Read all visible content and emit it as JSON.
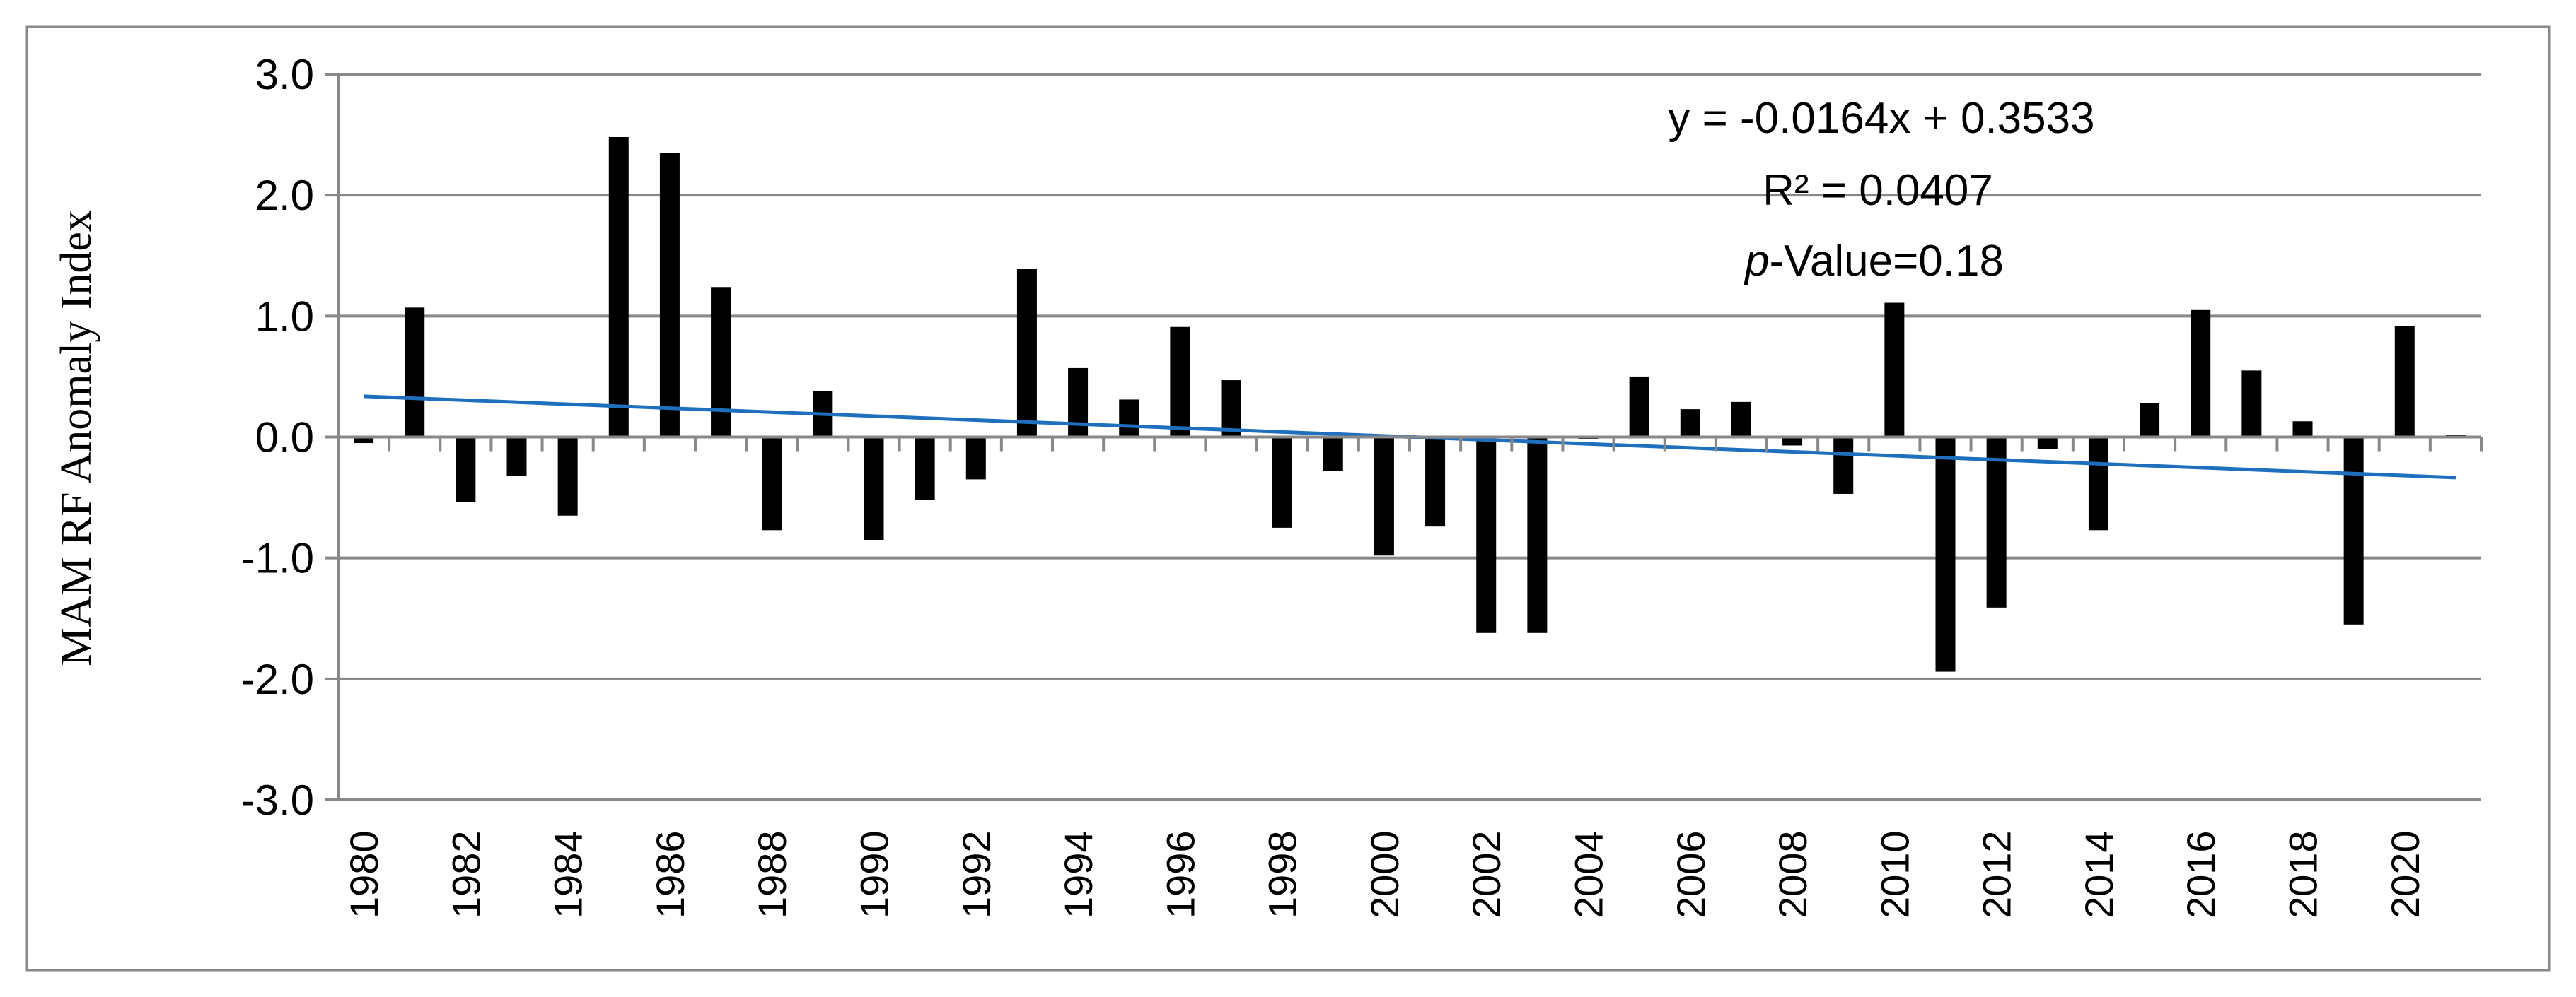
{
  "chart_data": {
    "type": "bar",
    "title": "",
    "xlabel": "",
    "ylabel": "MAM RF Anomaly Index",
    "ylim": [
      -3.0,
      3.0
    ],
    "yticks": [
      "3.0",
      "2.0",
      "1.0",
      "0.0",
      "-1.0",
      "-2.0",
      "-3.0"
    ],
    "ytick_values": [
      3,
      2,
      1,
      0,
      -1,
      -2,
      -3
    ],
    "grid": true,
    "categories": [
      "1980",
      "1981",
      "1982",
      "1983",
      "1984",
      "1985",
      "1986",
      "1987",
      "1988",
      "1989",
      "1990",
      "1991",
      "1992",
      "1993",
      "1994",
      "1995",
      "1996",
      "1997",
      "1998",
      "1999",
      "2000",
      "2001",
      "2002",
      "2003",
      "2004",
      "2005",
      "2006",
      "2007",
      "2008",
      "2009",
      "2010",
      "2011",
      "2012",
      "2013",
      "2014",
      "2015",
      "2016",
      "2017",
      "2018",
      "2019",
      "2020",
      "2021"
    ],
    "x_tick_labels": [
      "1980",
      "1982",
      "1984",
      "1986",
      "1988",
      "1990",
      "1992",
      "1994",
      "1996",
      "1998",
      "2000",
      "2002",
      "2004",
      "2006",
      "2008",
      "2010",
      "2012",
      "2014",
      "2016",
      "2018",
      "2020"
    ],
    "series": [
      {
        "name": "MAM RF Anomaly Index",
        "color": "#000000",
        "values": [
          -0.05,
          1.07,
          -0.54,
          -0.32,
          -0.65,
          2.48,
          2.35,
          1.24,
          -0.77,
          0.38,
          -0.85,
          -0.52,
          -0.35,
          1.39,
          0.57,
          0.31,
          0.91,
          0.47,
          -0.75,
          -0.28,
          -0.98,
          -0.74,
          -1.62,
          -1.62,
          -0.02,
          0.5,
          0.23,
          0.29,
          -0.07,
          -0.47,
          1.11,
          -1.94,
          -1.41,
          -0.1,
          -0.77,
          0.28,
          1.05,
          0.55,
          0.13,
          -1.55,
          0.92,
          0.02
        ]
      }
    ],
    "trendline": {
      "color": "#1f6fbf",
      "slope": -0.0164,
      "intercept": 0.3533
    },
    "annotations": {
      "equation": "y = -0.0164x + 0.3533",
      "r_squared": "R² = 0.0407",
      "p_italic": "p",
      "p_rest": "-Value=0.18"
    }
  }
}
